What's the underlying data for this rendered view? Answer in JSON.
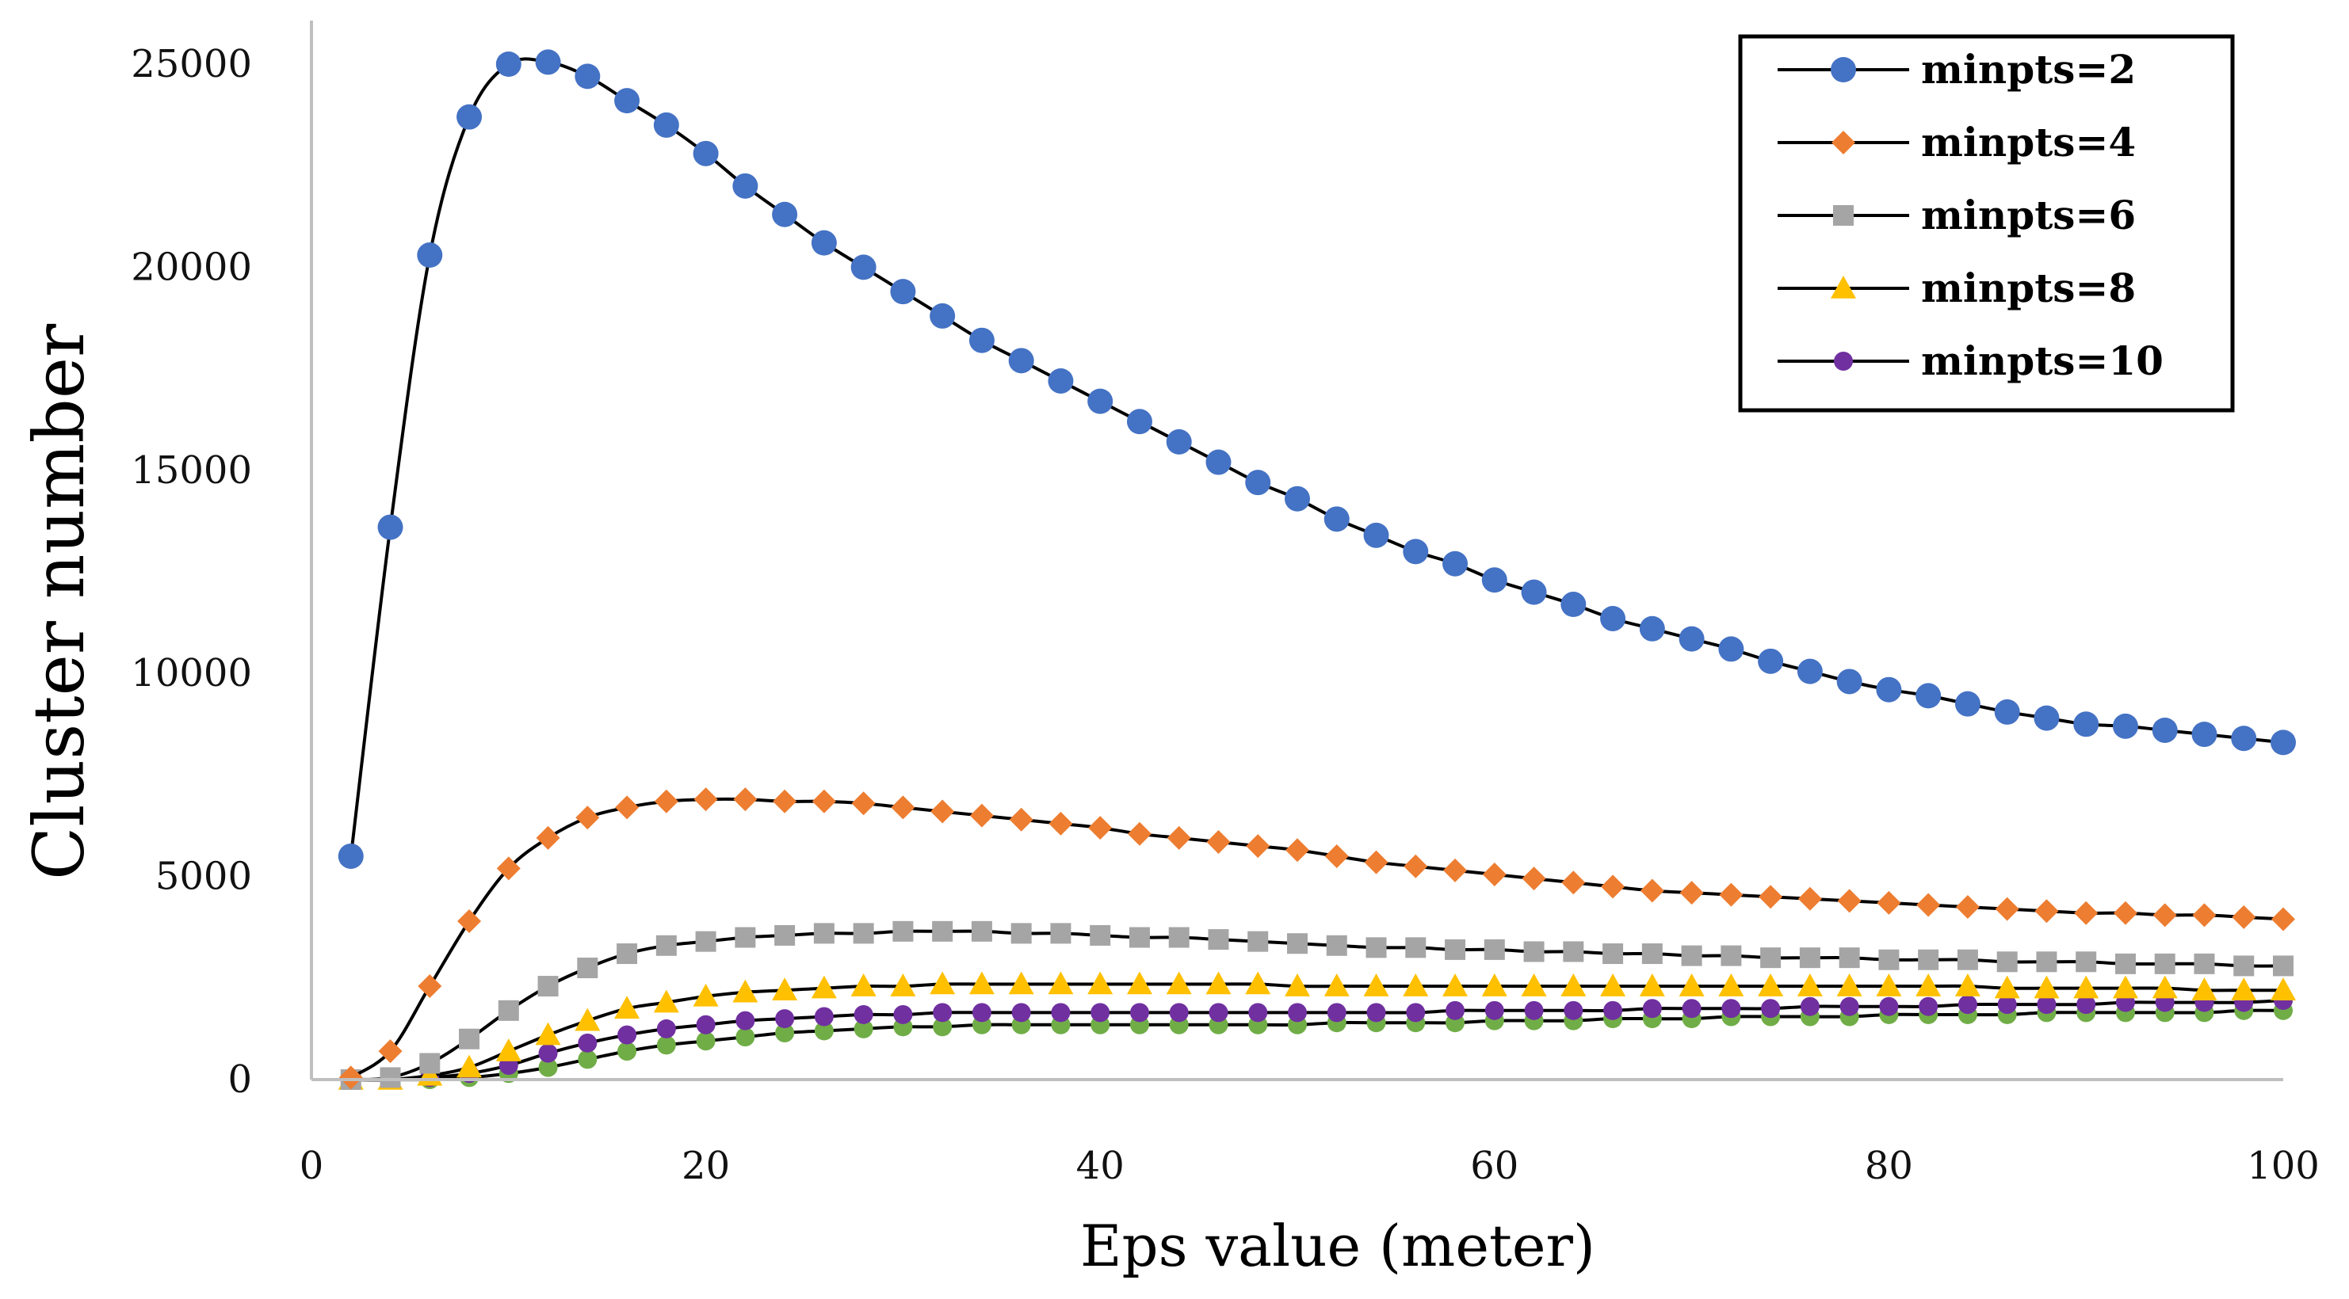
{
  "chart_data": {
    "type": "line",
    "title": "",
    "xlabel": "Eps value (meter)",
    "ylabel": "Cluster number",
    "xlim": [
      0,
      100
    ],
    "ylim": [
      0,
      25000
    ],
    "xticks": [
      0,
      20,
      40,
      60,
      80,
      100
    ],
    "yticks": [
      0,
      5000,
      10000,
      15000,
      20000,
      25000
    ],
    "grid": false,
    "legend_position": "top-right",
    "x": [
      2,
      4,
      6,
      8,
      10,
      12,
      14,
      16,
      18,
      20,
      22,
      24,
      26,
      28,
      30,
      32,
      34,
      36,
      38,
      40,
      42,
      44,
      46,
      48,
      50,
      52,
      54,
      56,
      58,
      60,
      62,
      64,
      66,
      68,
      70,
      72,
      74,
      76,
      78,
      80,
      82,
      84,
      86,
      88,
      90,
      92,
      94,
      96,
      98,
      100
    ],
    "series": [
      {
        "name": "minpts=2",
        "color": "#4472C4",
        "marker": "circle",
        "legend": true,
        "values": [
          5500,
          13600,
          20300,
          23700,
          25000,
          25050,
          24700,
          24100,
          23500,
          22800,
          22000,
          21300,
          20600,
          20000,
          19400,
          18800,
          18200,
          17700,
          17200,
          16700,
          16200,
          15700,
          15200,
          14700,
          14300,
          13800,
          13400,
          13000,
          12700,
          12300,
          12000,
          11700,
          11350,
          11100,
          10850,
          10600,
          10300,
          10050,
          9800,
          9600,
          9450,
          9250,
          9050,
          8900,
          8750,
          8700,
          8600,
          8500,
          8400,
          8300
        ]
      },
      {
        "name": "minpts=4",
        "color": "#ED7D31",
        "marker": "diamond",
        "legend": true,
        "values": [
          50,
          700,
          2300,
          3900,
          5200,
          5950,
          6450,
          6700,
          6850,
          6900,
          6900,
          6850,
          6850,
          6800,
          6700,
          6600,
          6500,
          6400,
          6300,
          6200,
          6050,
          5950,
          5850,
          5750,
          5650,
          5500,
          5350,
          5250,
          5150,
          5050,
          4950,
          4850,
          4750,
          4650,
          4600,
          4550,
          4500,
          4450,
          4400,
          4350,
          4300,
          4250,
          4200,
          4150,
          4100,
          4100,
          4050,
          4050,
          4000,
          3950
        ]
      },
      {
        "name": "minpts=6",
        "color": "#A5A5A5",
        "marker": "square",
        "legend": true,
        "values": [
          0,
          50,
          400,
          1000,
          1700,
          2300,
          2750,
          3100,
          3300,
          3400,
          3500,
          3550,
          3600,
          3600,
          3650,
          3650,
          3650,
          3600,
          3600,
          3550,
          3500,
          3500,
          3450,
          3400,
          3350,
          3300,
          3250,
          3250,
          3200,
          3200,
          3150,
          3150,
          3100,
          3100,
          3050,
          3050,
          3000,
          3000,
          3000,
          2950,
          2950,
          2950,
          2900,
          2900,
          2900,
          2850,
          2850,
          2850,
          2800,
          2800
        ]
      },
      {
        "name": "minpts=8",
        "color": "#FFC000",
        "marker": "triangle",
        "legend": true,
        "values": [
          0,
          0,
          100,
          300,
          700,
          1100,
          1450,
          1750,
          1900,
          2050,
          2150,
          2200,
          2250,
          2300,
          2300,
          2350,
          2350,
          2350,
          2350,
          2350,
          2350,
          2350,
          2350,
          2350,
          2300,
          2300,
          2300,
          2300,
          2300,
          2300,
          2300,
          2300,
          2300,
          2300,
          2300,
          2300,
          2300,
          2300,
          2300,
          2300,
          2300,
          2300,
          2250,
          2250,
          2250,
          2250,
          2250,
          2200,
          2200,
          2200
        ]
      },
      {
        "name": "minpts=10",
        "color": "#7030A0",
        "marker": "circle-small",
        "legend": true,
        "values": [
          0,
          0,
          50,
          150,
          350,
          650,
          900,
          1100,
          1250,
          1350,
          1450,
          1500,
          1550,
          1600,
          1600,
          1650,
          1650,
          1650,
          1650,
          1650,
          1650,
          1650,
          1650,
          1650,
          1650,
          1650,
          1650,
          1650,
          1700,
          1700,
          1700,
          1700,
          1700,
          1750,
          1750,
          1750,
          1750,
          1800,
          1800,
          1800,
          1800,
          1850,
          1850,
          1850,
          1850,
          1900,
          1900,
          1900,
          1900,
          1950
        ]
      },
      {
        "name": "",
        "color": "#70AD47",
        "marker": "circle-small",
        "legend": false,
        "values": [
          0,
          0,
          0,
          50,
          150,
          300,
          500,
          700,
          850,
          950,
          1050,
          1150,
          1200,
          1250,
          1300,
          1300,
          1350,
          1350,
          1350,
          1350,
          1350,
          1350,
          1350,
          1350,
          1350,
          1400,
          1400,
          1400,
          1400,
          1450,
          1450,
          1450,
          1500,
          1500,
          1500,
          1550,
          1550,
          1550,
          1550,
          1600,
          1600,
          1600,
          1600,
          1650,
          1650,
          1650,
          1650,
          1650,
          1700,
          1700
        ]
      }
    ]
  }
}
